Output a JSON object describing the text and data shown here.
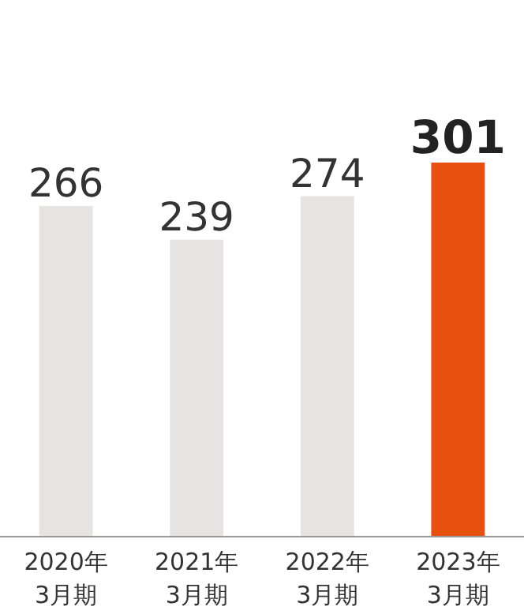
{
  "chart_data": {
    "type": "bar",
    "categories": [
      "2020年\n3月期",
      "2021年\n3月期",
      "2022年\n3月期",
      "2023年\n3月期"
    ],
    "values": [
      266,
      239,
      274,
      301
    ],
    "colors": [
      "#e6e4e2",
      "#e6e4e2",
      "#e6e4e2",
      "#e8500e"
    ],
    "data_labels": true
  }
}
